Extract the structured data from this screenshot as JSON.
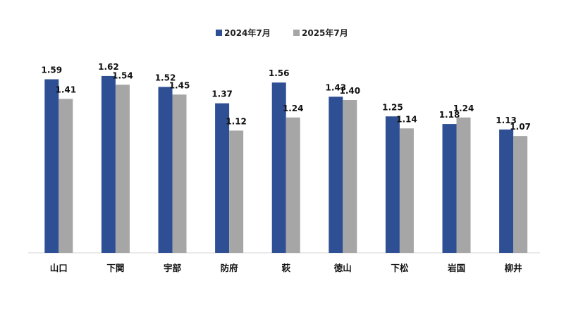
{
  "chart_data": {
    "type": "bar",
    "title": "",
    "xlabel": "",
    "ylabel": "",
    "ylim": [
      0,
      1.8
    ],
    "grid": false,
    "legend": "top-center",
    "categories": [
      "山口",
      "下関",
      "宇部",
      "防府",
      "萩",
      "徳山",
      "下松",
      "岩国",
      "柳井"
    ],
    "series": [
      {
        "name": "2024年7月",
        "color": "#2E4F94",
        "values": [
          1.59,
          1.62,
          1.52,
          1.37,
          1.56,
          1.43,
          1.25,
          1.18,
          1.13
        ],
        "labels": [
          "1.59",
          "1.62",
          "1.52",
          "1.37",
          "1.56",
          "1.43",
          "1.25",
          "1.18",
          "1.13"
        ]
      },
      {
        "name": "2025年7月",
        "color": "#A6A6A6",
        "values": [
          1.41,
          1.54,
          1.45,
          1.12,
          1.24,
          1.4,
          1.14,
          1.24,
          1.07
        ],
        "labels": [
          "1.41",
          "1.54",
          "1.45",
          "1.12",
          "1.24",
          "1.40",
          "1.14",
          "1.24",
          "1.07"
        ]
      }
    ]
  }
}
